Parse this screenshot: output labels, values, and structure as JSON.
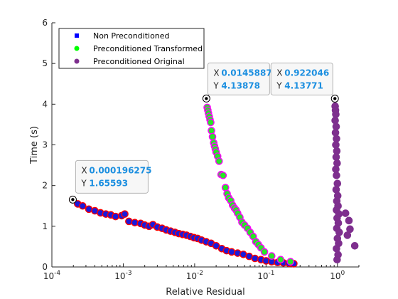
{
  "chart_data": {
    "type": "scatter",
    "title": "",
    "xlabel": "Relative Residual",
    "ylabel": "Time (s)",
    "xscale": "log",
    "xlim": [
      0.0001,
      2
    ],
    "ylim": [
      0,
      6
    ],
    "x_ticks": [
      {
        "value": 0.0001,
        "base": "10",
        "exp": "-4"
      },
      {
        "value": 0.001,
        "base": "10",
        "exp": "-3"
      },
      {
        "value": 0.01,
        "base": "10",
        "exp": "-2"
      },
      {
        "value": 0.1,
        "base": "10",
        "exp": "-1"
      },
      {
        "value": 1,
        "base": "10",
        "exp": "0"
      }
    ],
    "y_ticks": [
      "0",
      "1",
      "2",
      "3",
      "4",
      "5",
      "6"
    ],
    "grid": false,
    "legend": {
      "placement": "top-left",
      "entries": [
        {
          "label": "Non Preconditioned",
          "marker": "square",
          "color": "#0000ff"
        },
        {
          "label": "Preconditioned Transformed",
          "marker": "circle",
          "color": "#00ff00"
        },
        {
          "label": "Preconditioned Original",
          "marker": "circle",
          "color": "#7e2f8e"
        }
      ]
    },
    "series": [
      {
        "name": "Non Preconditioned",
        "color": "#1a1adb",
        "edge": "#ff0000",
        "points": [
          [
            0.000196,
            1.656
          ],
          [
            0.00023,
            1.55
          ],
          [
            0.00027,
            1.5
          ],
          [
            0.00033,
            1.42
          ],
          [
            0.0004,
            1.38
          ],
          [
            0.00048,
            1.33
          ],
          [
            0.00057,
            1.3
          ],
          [
            0.00067,
            1.28
          ],
          [
            0.00078,
            1.24
          ],
          [
            0.00095,
            1.26
          ],
          [
            0.00105,
            1.3
          ],
          [
            0.0012,
            1.12
          ],
          [
            0.00145,
            1.09
          ],
          [
            0.00175,
            1.07
          ],
          [
            0.002,
            1.03
          ],
          [
            0.0023,
            1.0
          ],
          [
            0.0026,
            1.04
          ],
          [
            0.003,
            0.98
          ],
          [
            0.0035,
            0.95
          ],
          [
            0.004,
            0.91
          ],
          [
            0.0046,
            0.88
          ],
          [
            0.0053,
            0.85
          ],
          [
            0.006,
            0.82
          ],
          [
            0.0068,
            0.8
          ],
          [
            0.0077,
            0.78
          ],
          [
            0.0087,
            0.75
          ],
          [
            0.0098,
            0.72
          ],
          [
            0.011,
            0.7
          ],
          [
            0.0125,
            0.66
          ],
          [
            0.0145,
            0.62
          ],
          [
            0.017,
            0.58
          ],
          [
            0.02,
            0.52
          ],
          [
            0.024,
            0.45
          ],
          [
            0.028,
            0.4
          ],
          [
            0.033,
            0.37
          ],
          [
            0.04,
            0.34
          ],
          [
            0.048,
            0.31
          ],
          [
            0.058,
            0.26
          ],
          [
            0.07,
            0.21
          ],
          [
            0.085,
            0.18
          ],
          [
            0.1,
            0.15
          ],
          [
            0.12,
            0.13
          ],
          [
            0.145,
            0.11
          ],
          [
            0.175,
            0.1
          ],
          [
            0.21,
            0.09
          ],
          [
            0.245,
            0.08
          ]
        ]
      },
      {
        "name": "Preconditioned Transformed",
        "color": "#27e627",
        "edge": "#ff00ff",
        "points": [
          [
            0.0146,
            4.139
          ],
          [
            0.015,
            3.92
          ],
          [
            0.0153,
            3.85
          ],
          [
            0.0156,
            3.78
          ],
          [
            0.016,
            3.7
          ],
          [
            0.0164,
            3.62
          ],
          [
            0.0168,
            3.55
          ],
          [
            0.0172,
            3.35
          ],
          [
            0.0178,
            3.2
          ],
          [
            0.0185,
            3.05
          ],
          [
            0.019,
            2.97
          ],
          [
            0.0195,
            2.9
          ],
          [
            0.02,
            2.82
          ],
          [
            0.021,
            2.72
          ],
          [
            0.022,
            2.6
          ],
          [
            0.0235,
            2.27
          ],
          [
            0.025,
            2.25
          ],
          [
            0.027,
            1.95
          ],
          [
            0.0285,
            1.8
          ],
          [
            0.03,
            1.7
          ],
          [
            0.032,
            1.63
          ],
          [
            0.034,
            1.52
          ],
          [
            0.036,
            1.45
          ],
          [
            0.038,
            1.4
          ],
          [
            0.04,
            1.32
          ],
          [
            0.043,
            1.22
          ],
          [
            0.046,
            1.1
          ],
          [
            0.05,
            1.03
          ],
          [
            0.055,
            0.95
          ],
          [
            0.06,
            0.85
          ],
          [
            0.066,
            0.75
          ],
          [
            0.072,
            0.62
          ],
          [
            0.078,
            0.55
          ],
          [
            0.085,
            0.47
          ],
          [
            0.095,
            0.37
          ],
          [
            0.12,
            0.27
          ],
          [
            0.16,
            0.18
          ],
          [
            0.22,
            0.13
          ]
        ]
      },
      {
        "name": "Preconditioned Original",
        "color": "#7e2f8e",
        "edge": "#7e2f8e",
        "points": [
          [
            0.922,
            4.138
          ],
          [
            0.93,
            3.95
          ],
          [
            0.94,
            3.85
          ],
          [
            0.95,
            3.75
          ],
          [
            0.93,
            3.6
          ],
          [
            0.96,
            3.45
          ],
          [
            0.94,
            3.3
          ],
          [
            0.97,
            3.15
          ],
          [
            0.95,
            3.0
          ],
          [
            0.98,
            2.85
          ],
          [
            0.96,
            2.7
          ],
          [
            0.99,
            2.55
          ],
          [
            0.95,
            2.4
          ],
          [
            0.97,
            2.25
          ],
          [
            1.0,
            2.05
          ],
          [
            0.96,
            1.9
          ],
          [
            1.01,
            1.75
          ],
          [
            0.98,
            1.62
          ],
          [
            1.02,
            1.5
          ],
          [
            0.97,
            1.4
          ],
          [
            1.05,
            1.3
          ],
          [
            0.99,
            1.2
          ],
          [
            1.03,
            1.08
          ],
          [
            0.98,
            0.95
          ],
          [
            1.06,
            0.85
          ],
          [
            1.0,
            0.7
          ],
          [
            1.04,
            0.58
          ],
          [
            0.97,
            0.45
          ],
          [
            1.02,
            0.3
          ],
          [
            0.99,
            0.18
          ],
          [
            1.3,
            1.32
          ],
          [
            1.45,
            1.14
          ],
          [
            1.5,
            0.93
          ],
          [
            1.75,
            0.52
          ],
          [
            1.38,
            0.78
          ]
        ]
      }
    ],
    "datatips": [
      {
        "x_label": "X",
        "x_value": "0.000196275",
        "y_label": "Y",
        "y_value": "1.65593",
        "point": [
          0.000196275,
          1.65593
        ]
      },
      {
        "x_label": "X",
        "x_value": "0.0145887",
        "y_label": "Y",
        "y_value": "4.13878",
        "point": [
          0.0145887,
          4.13878
        ]
      },
      {
        "x_label": "X",
        "x_value": "0.922046",
        "y_label": "Y",
        "y_value": "4.13771",
        "point": [
          0.922046,
          4.13771
        ]
      }
    ]
  }
}
